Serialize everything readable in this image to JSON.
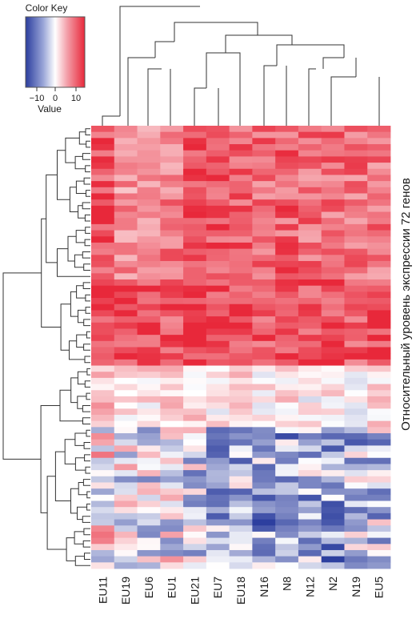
{
  "chart_data": {
    "type": "heatmap",
    "color_key": {
      "title": "Color  Key",
      "label": "Value",
      "ticks": [
        "−10",
        "0",
        "10"
      ],
      "range": [
        -15,
        15
      ],
      "colors": {
        "low": "#2b3d9e",
        "mid": "#ffffff",
        "high": "#e8283a"
      }
    },
    "columns": [
      "EU11",
      "EU19",
      "EU6",
      "EU1",
      "EU21",
      "EU7",
      "EU18",
      "N16",
      "N8",
      "N12",
      "N2",
      "N19",
      "EU5"
    ],
    "row_axis_label": "Относительный уровень экспрессии 72 генов",
    "n_rows": 72,
    "row_blocks": [
      {
        "rows": 25,
        "profile": [
          12,
          8,
          8,
          9,
          13,
          12,
          11,
          10,
          11,
          10,
          10,
          10,
          10
        ]
      },
      {
        "rows": 14,
        "profile": [
          13,
          12,
          13,
          12,
          14,
          13,
          13,
          12,
          13,
          12,
          12,
          12,
          13
        ]
      },
      {
        "rows": 10,
        "profile": [
          4,
          2,
          2,
          4,
          3,
          1,
          2,
          1,
          2,
          1,
          2,
          1,
          2
        ]
      },
      {
        "rows": 23,
        "profile": [
          -3,
          -5,
          -6,
          -5,
          -7,
          -9,
          -10,
          -11,
          -11,
          -10,
          -11,
          -9,
          -8
        ]
      }
    ]
  }
}
